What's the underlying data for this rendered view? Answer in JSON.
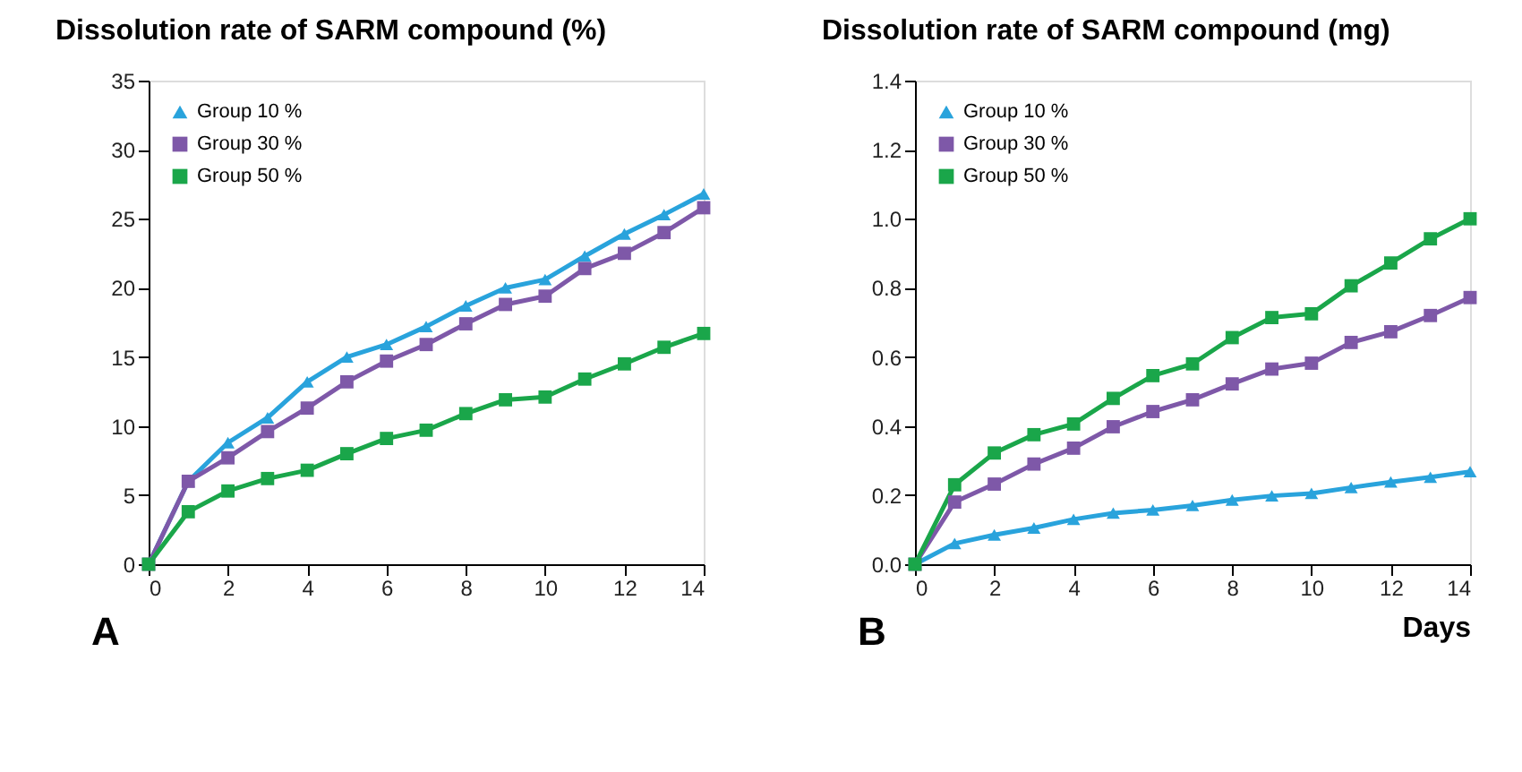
{
  "chart_data": [
    {
      "type": "line",
      "title": "Dissolution rate of SARM compound (%)",
      "annotations": [
        "A"
      ],
      "x": [
        0,
        1,
        2,
        3,
        4,
        5,
        6,
        7,
        8,
        9,
        10,
        11,
        12,
        13,
        14
      ],
      "xlim": [
        0,
        14
      ],
      "xticks": [
        0,
        2,
        4,
        6,
        8,
        10,
        12,
        14
      ],
      "ylim": [
        0,
        35
      ],
      "yticks": [
        0,
        5,
        10,
        15,
        20,
        25,
        30,
        35
      ],
      "grid": false,
      "legend": "top left",
      "line_style": "solid",
      "series": [
        {
          "name": "Group 10 %",
          "color": "#29a3dc",
          "marker": "triangle",
          "values": [
            0,
            6.0,
            8.8,
            10.6,
            13.2,
            15.0,
            15.9,
            17.2,
            18.7,
            20.0,
            20.6,
            22.3,
            23.9,
            25.3,
            26.8
          ]
        },
        {
          "name": "Group 30 %",
          "color": "#7e58a8",
          "marker": "square",
          "values": [
            0,
            6.0,
            7.7,
            9.6,
            11.3,
            13.2,
            14.7,
            15.9,
            17.4,
            18.8,
            19.4,
            21.4,
            22.5,
            24.0,
            25.8
          ]
        },
        {
          "name": "Group 50 %",
          "color": "#1aa64a",
          "marker": "square",
          "values": [
            0,
            3.8,
            5.3,
            6.2,
            6.8,
            8.0,
            9.1,
            9.7,
            10.9,
            11.9,
            12.1,
            13.4,
            14.5,
            15.7,
            16.7
          ]
        }
      ]
    },
    {
      "type": "line",
      "title": "Dissolution rate of SARM compound (mg)",
      "xlabel": "Days",
      "annotations": [
        "B"
      ],
      "x": [
        0,
        1,
        2,
        3,
        4,
        5,
        6,
        7,
        8,
        9,
        10,
        11,
        12,
        13,
        14
      ],
      "xlim": [
        0,
        14
      ],
      "xticks": [
        0,
        2,
        4,
        6,
        8,
        10,
        12,
        14
      ],
      "ylim": [
        0,
        1.4
      ],
      "yticks": [
        {
          "value": 0,
          "label": "0.0"
        },
        0.2,
        0.4,
        0.6,
        0.8,
        {
          "value": 1,
          "label": "1.0"
        },
        1.2,
        1.4
      ],
      "grid": false,
      "legend": "top left",
      "line_style": "solid",
      "series": [
        {
          "name": "Group 10 %",
          "color": "#29a3dc",
          "marker": "triangle",
          "values": [
            0,
            0.06,
            0.085,
            0.105,
            0.13,
            0.148,
            0.157,
            0.17,
            0.186,
            0.198,
            0.205,
            0.222,
            0.238,
            0.252,
            0.268
          ]
        },
        {
          "name": "Group 30 %",
          "color": "#7e58a8",
          "marker": "square",
          "values": [
            0,
            0.18,
            0.232,
            0.29,
            0.336,
            0.398,
            0.442,
            0.476,
            0.522,
            0.565,
            0.582,
            0.642,
            0.673,
            0.72,
            0.772
          ]
        },
        {
          "name": "Group 50 %",
          "color": "#1aa64a",
          "marker": "square",
          "values": [
            0,
            0.23,
            0.322,
            0.375,
            0.406,
            0.48,
            0.546,
            0.58,
            0.656,
            0.714,
            0.725,
            0.806,
            0.872,
            0.942,
            1.0
          ]
        }
      ]
    }
  ]
}
